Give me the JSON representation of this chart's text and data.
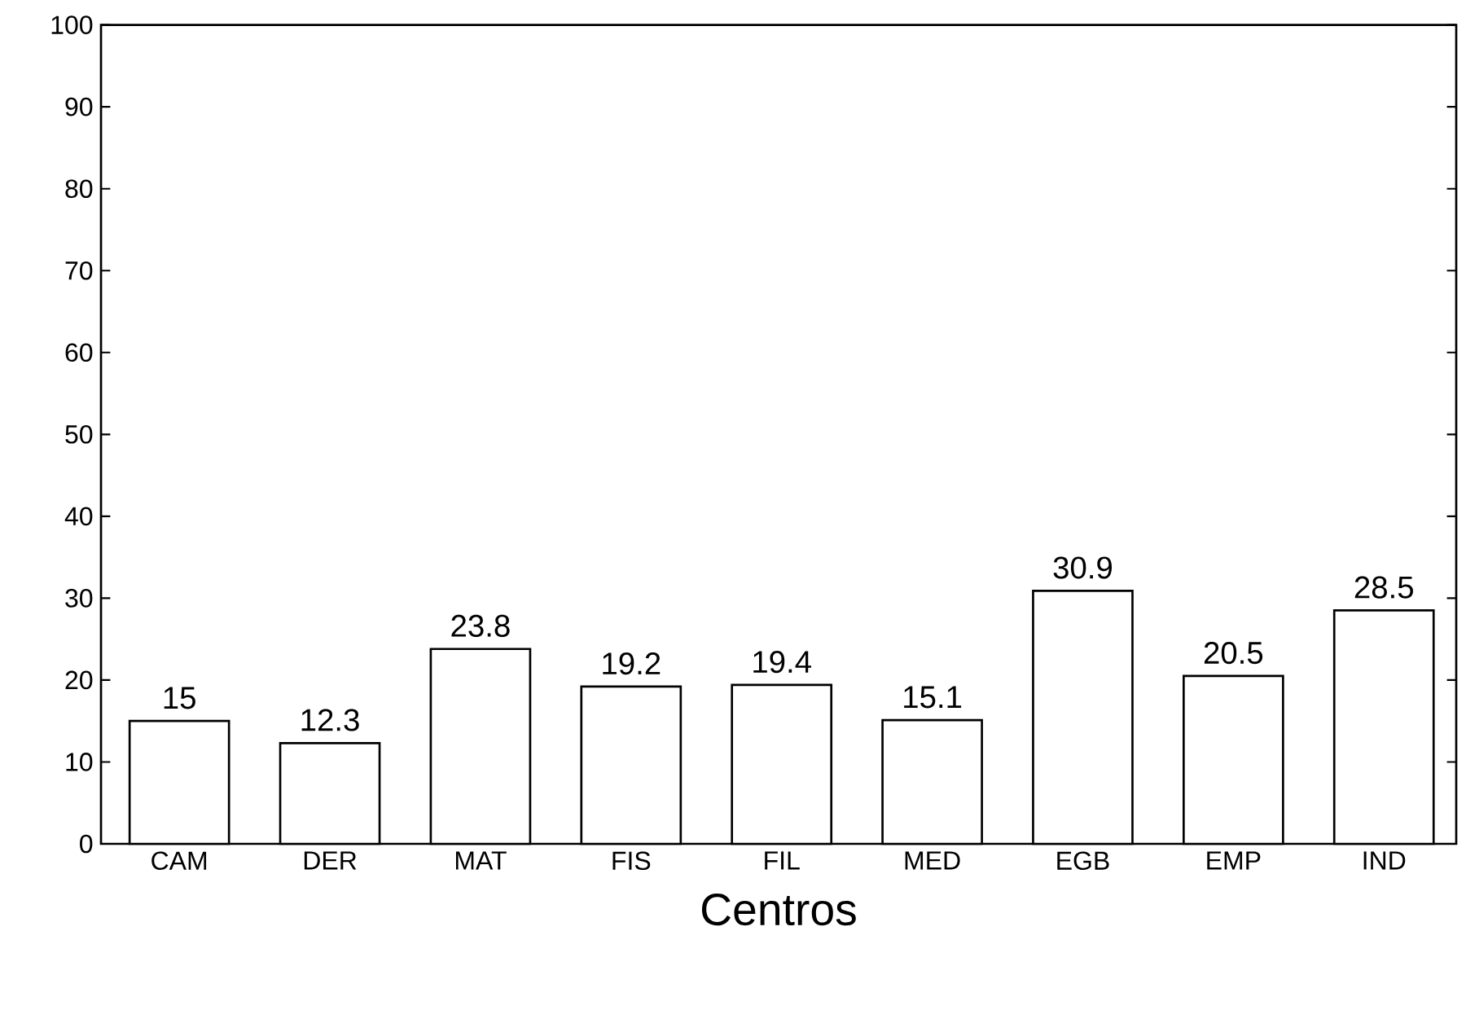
{
  "chart_data": {
    "type": "bar",
    "xlabel": "Centros",
    "categories": [
      "CAM",
      "DER",
      "MAT",
      "FIS",
      "FIL",
      "MED",
      "EGB",
      "EMP",
      "IND"
    ],
    "values": [
      15,
      12.3,
      23.8,
      19.2,
      19.4,
      15.1,
      30.9,
      20.5,
      28.5
    ],
    "color": "#ffffff",
    "ylim": [
      0,
      100
    ],
    "yticks": [
      0,
      10,
      20,
      30,
      40,
      50,
      60,
      70,
      80,
      90,
      100
    ],
    "data_labels": true
  }
}
